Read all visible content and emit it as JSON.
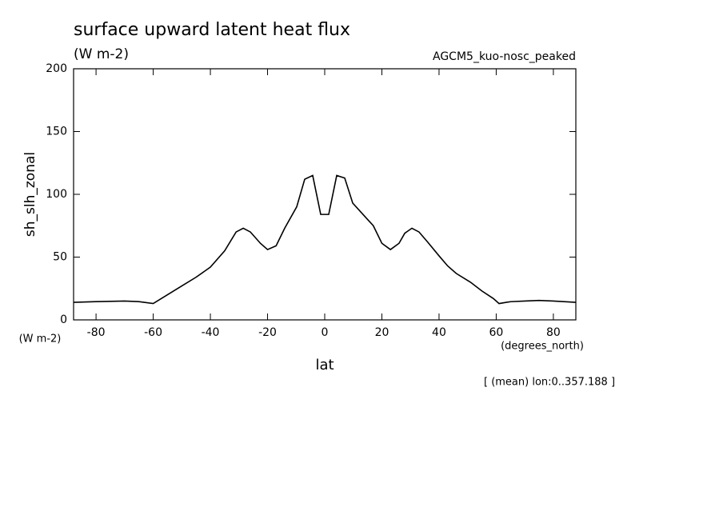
{
  "chart_data": {
    "type": "line",
    "title": "surface upward latent heat flux",
    "subtitle": "(W m-2)",
    "annotation": "AGCM5_kuo-nosc_peaked",
    "y_label": "sh_slh_zonal",
    "y_units": "(W m-2)",
    "x_label": "lat",
    "x_units": "(degrees_north)",
    "footnote": "[ (mean) lon:0..357.188 ]",
    "x": [
      -87.86,
      -80,
      -70,
      -65,
      -60,
      -55,
      -50,
      -45,
      -40,
      -35,
      -31,
      -28.5,
      -26,
      -22.5,
      -20,
      -17,
      -14,
      -9.8,
      -7,
      -4.2,
      -1.4,
      1.4,
      4.2,
      7,
      9.8,
      15,
      17,
      20,
      23,
      26,
      28,
      30.5,
      33,
      36,
      40,
      43,
      46,
      51,
      55,
      59,
      61,
      65,
      70,
      75,
      80,
      87.86
    ],
    "series": [
      {
        "name": "sh_slh_zonal",
        "color": "#000000",
        "values": [
          14,
          14.5,
          15,
          14.5,
          13,
          20,
          27,
          34,
          42,
          55,
          70,
          73,
          70,
          61,
          56,
          59,
          73,
          90,
          112,
          115,
          84,
          84,
          115,
          113,
          93,
          80,
          75,
          61,
          56,
          61,
          69,
          73,
          70,
          62,
          51,
          43,
          37,
          30,
          23,
          17,
          13,
          14.5,
          15,
          15.5,
          15,
          14
        ]
      }
    ],
    "xlim": [
      -87.86,
      87.86
    ],
    "ylim": [
      0,
      200
    ],
    "xticks": [
      -80,
      -60,
      -40,
      -20,
      0,
      20,
      40,
      60,
      80
    ],
    "yticks": [
      0,
      50,
      100,
      150,
      200
    ]
  }
}
